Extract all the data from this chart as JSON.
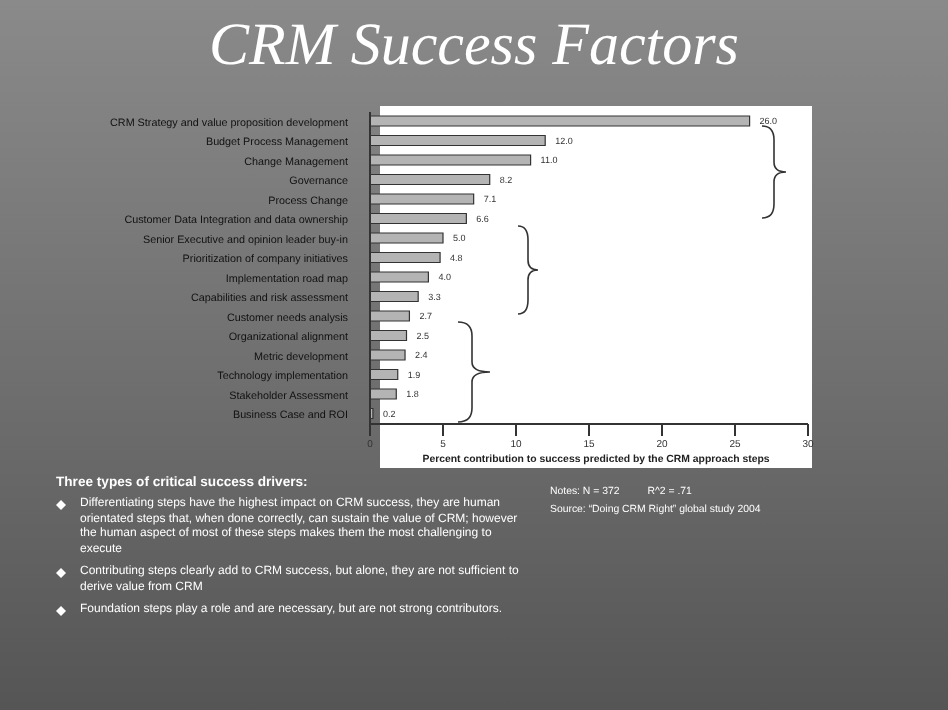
{
  "chart_data": {
    "type": "bar",
    "orientation": "horizontal",
    "title": "CRM Success Factors",
    "categories": [
      "CRM Strategy and value proposition development",
      "Budget Process Management",
      "Change Management",
      "Governance",
      "Process Change",
      "Customer Data Integration and data ownership",
      "Senior Executive and opinion leader buy-in",
      "Prioritization of company initiatives",
      "Implementation road map",
      "Capabilities and risk assessment",
      "Customer needs analysis",
      "Organizational alignment",
      "Metric development",
      "Technology implementation",
      "Stakeholder Assessment",
      "Business Case and ROI"
    ],
    "values": [
      26.0,
      12.0,
      11.0,
      8.2,
      7.1,
      6.6,
      5.0,
      4.8,
      4.0,
      3.3,
      2.7,
      2.5,
      2.4,
      1.9,
      1.8,
      0.2
    ],
    "value_labels": [
      "26.0",
      "12.0",
      "11.0",
      "8.2",
      "7.1",
      "6.6",
      "5.0",
      "4.8",
      "4.0",
      "3.3",
      "2.7",
      "2.5",
      "2.4",
      "1.9",
      "1.8",
      "0.2"
    ],
    "color": "#b4b4b4",
    "xlim": [
      0,
      30
    ],
    "xticks": [
      0,
      5,
      10,
      15,
      20,
      25,
      30
    ],
    "xlabel": "Percent contribution to success predicted by the CRM approach steps",
    "grid": false,
    "legend": false,
    "annotations": [
      "Three types of critical success drivers:",
      "Differentiating steps have the highest impact on CRM success, they are human orientated steps that, when done correctly, can sustain the value of CRM; however the human aspect of most of these steps makes them the most challenging to execute",
      "Contributing steps clearly add to CRM success, but alone, they are not sufficient to derive value from CRM",
      "Foundation steps play a role and are necessary, but are not strong contributors.",
      "Notes: N = 372",
      "R^2 = .71",
      "Source: “Doing CRM Right” global study 2004"
    ]
  }
}
